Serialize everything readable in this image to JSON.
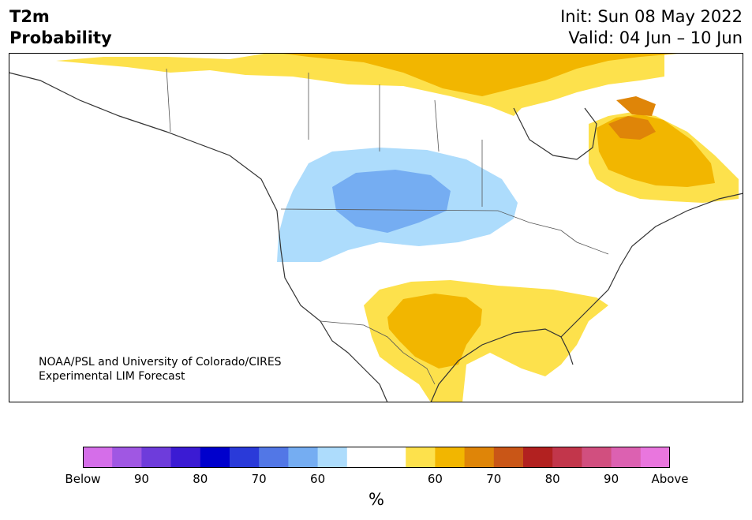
{
  "header": {
    "title_line1": "T2m",
    "title_line2": "Probability",
    "init_text": "Init: Sun 08 May 2022",
    "valid_text": "Valid: 04 Jun – 10 Jun"
  },
  "credit": {
    "line1": "NOAA/PSL and University of Colorado/CIRES",
    "line2": "Experimental LIM Forecast"
  },
  "colorbar": {
    "colors": [
      "#d56ee9",
      "#a057e3",
      "#6e3cdb",
      "#3b1bd3",
      "#0000cc",
      "#2a3ad9",
      "#5277e6",
      "#75adf2",
      "#addcfc",
      "#ffffff",
      "#ffffff",
      "#fde14c",
      "#f2b600",
      "#df8508",
      "#c95617",
      "#b22120",
      "#c2364b",
      "#d14f7f",
      "#dc61b1",
      "#e976de"
    ],
    "tick_labels": [
      "Below",
      "90",
      "80",
      "70",
      "60",
      "",
      "60",
      "70",
      "80",
      "90",
      "Above"
    ],
    "unit_label": "%"
  },
  "map_colors": {
    "land": "#ffffff",
    "ocean": "#ffffff",
    "coast": "#333333",
    "border": "#555555",
    "warm_light": "#fde14c",
    "warm_mid": "#f2b600",
    "warm_dark": "#df8508",
    "cool_light": "#addcfc",
    "cool_mid": "#75adf2"
  }
}
